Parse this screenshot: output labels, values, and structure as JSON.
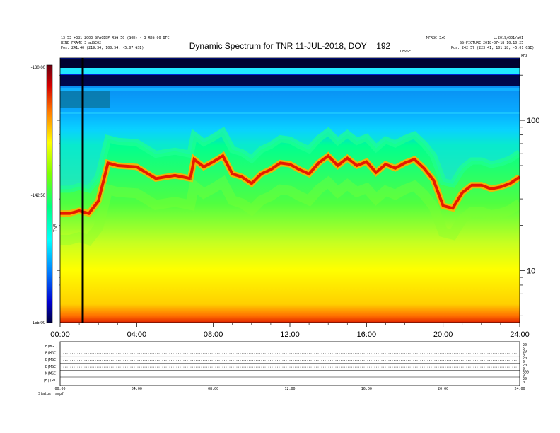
{
  "header": {
    "title": "Dynamic Spectrum for TNR 11-JUL-2018, DOY = 192",
    "left_line1": "13:53 +381.2003 SPACEBP RSG 50 (SOH) - 3 RKG 00 BFC",
    "left_line2": "WIND  FRAME 3  adSC02",
    "left_line3": "Pos:   241.40 (219.34, 100.54, -5.07 GSE)",
    "mid_right": "MFRBC 3x0",
    "right_line1": "L:2019/001/a01",
    "right_line2": "SS-PICTURE 2018-07-18 10:10:25",
    "right_line3": "Pos:   242.57 (223.41, 101.28, -5.01 GSE)",
    "small_center": "DFVSE",
    "right_corner": "kHz"
  },
  "colorbar": {
    "max_label": "-130.00",
    "mid_label": "-142.50",
    "min_label": "-155.00",
    "axis_label": "TNR",
    "colors": [
      "#6a0010",
      "#d40000",
      "#ff7a00",
      "#ffff00",
      "#7fff00",
      "#00ff80",
      "#00ffff",
      "#0080ff",
      "#0000d0",
      "#000040"
    ]
  },
  "chart_data": [
    {
      "type": "heatmap",
      "title": "Dynamic Spectrum for TNR 11-JUL-2018, DOY = 192",
      "x_label": "",
      "y_label": "kHz",
      "y_scale": "log",
      "x_ticks": [
        "00:00",
        "04:00",
        "08:00",
        "12:00",
        "16:00",
        "20:00",
        "24:00"
      ],
      "y_ticks": [
        10,
        100
      ],
      "color_range": [
        -155.0,
        -130.0
      ],
      "color_label": "TNR",
      "data_gaps": [
        "01:10"
      ],
      "intensity_ridge": {
        "hours": [
          0,
          0.5,
          1,
          1.5,
          2,
          2.5,
          3,
          4,
          5,
          6,
          6.8,
          7,
          7.5,
          8,
          8.5,
          9,
          9.5,
          10,
          10.5,
          11,
          11.5,
          12,
          12.5,
          13,
          13.5,
          14,
          14.5,
          15,
          15.5,
          16,
          16.5,
          17,
          17.5,
          18,
          18.5,
          19,
          19.5,
          20,
          20.5,
          21,
          21.5,
          22,
          22.5,
          23,
          23.5,
          24
        ],
        "freq_khz": [
          24,
          24,
          25,
          24,
          29,
          52,
          50,
          49,
          41,
          43,
          41,
          55,
          49,
          53,
          58,
          44,
          42,
          38,
          44,
          47,
          52,
          51,
          47,
          44,
          52,
          58,
          50,
          56,
          50,
          53,
          45,
          51,
          48,
          52,
          55,
          48,
          40,
          27,
          26,
          33,
          37,
          37,
          35,
          36,
          38,
          42
        ]
      }
    },
    {
      "type": "line",
      "panel": "lower",
      "x_ticks": [
        "00:00",
        "04:00",
        "08:00",
        "12:00",
        "16:00",
        "20:00",
        "24:00"
      ],
      "rows": [
        {
          "label": "B(MGC)",
          "right_ticks": [
            "20",
            "5"
          ]
        },
        {
          "label": "B(MGC)",
          "right_ticks": [
            "20",
            "0"
          ]
        },
        {
          "label": "B(MGC)",
          "right_ticks": [
            "20",
            "0"
          ]
        },
        {
          "label": "B(MGC)",
          "right_ticks": [
            "20",
            "0"
          ]
        },
        {
          "label": "N(MGC)",
          "right_ticks": [
            "500",
            "0"
          ]
        },
        {
          "label": "|B|(RT)",
          "right_ticks": [
            "20",
            "0"
          ]
        }
      ],
      "status_label": "Status: ampf"
    }
  ]
}
